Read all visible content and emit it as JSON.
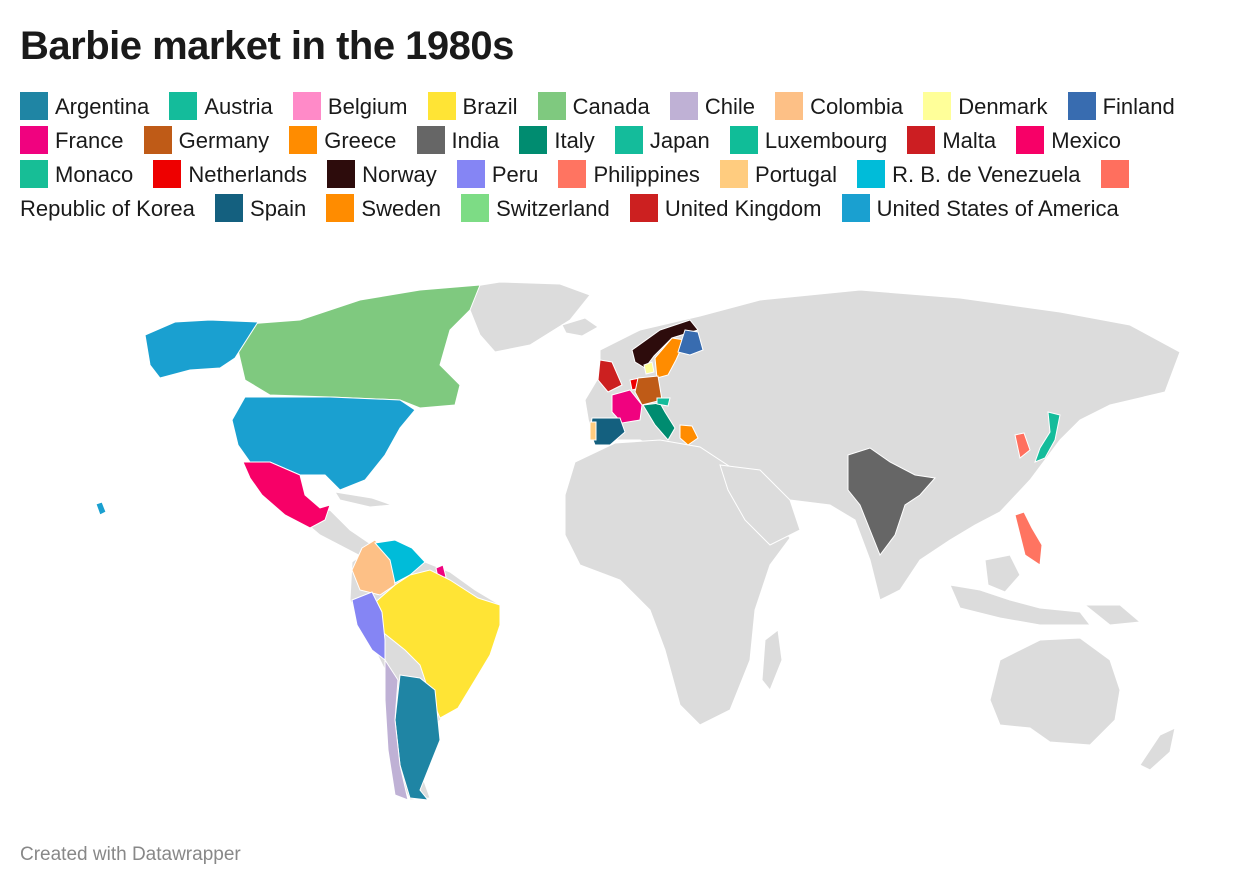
{
  "title": "Barbie market in the 1980s",
  "footer": "Created with Datawrapper",
  "colors": {
    "land": "#dcdcdc",
    "border": "#ffffff"
  },
  "legend": [
    {
      "name": "Argentina",
      "color": "#1f85a4"
    },
    {
      "name": "Austria",
      "color": "#14bc9b"
    },
    {
      "name": "Belgium",
      "color": "#ff8ac8"
    },
    {
      "name": "Brazil",
      "color": "#ffe435"
    },
    {
      "name": "Canada",
      "color": "#7fc97f"
    },
    {
      "name": "Chile",
      "color": "#bfb1d5"
    },
    {
      "name": "Colombia",
      "color": "#fdc086"
    },
    {
      "name": "Denmark",
      "color": "#ffff99"
    },
    {
      "name": "Finland",
      "color": "#386cb0"
    },
    {
      "name": "France",
      "color": "#f0027f"
    },
    {
      "name": "Germany",
      "color": "#bf5b17"
    },
    {
      "name": "Greece",
      "color": "#ff8c00"
    },
    {
      "name": "India",
      "color": "#666666"
    },
    {
      "name": "Italy",
      "color": "#008c70"
    },
    {
      "name": "Japan",
      "color": "#14bc9b"
    },
    {
      "name": "Luxembourg",
      "color": "#10bd98"
    },
    {
      "name": "Malta",
      "color": "#cc1e22"
    },
    {
      "name": "Mexico",
      "color": "#f70067"
    },
    {
      "name": "Monaco",
      "color": "#17be96"
    },
    {
      "name": "Netherlands",
      "color": "#ee0000"
    },
    {
      "name": "Norway",
      "color": "#2d0c0c"
    },
    {
      "name": "Peru",
      "color": "#8585f4"
    },
    {
      "name": "Philippines",
      "color": "#ff7461"
    },
    {
      "name": "Portugal",
      "color": "#ffcc7f"
    },
    {
      "name": "R. B. de Venezuela",
      "color": "#00bcd9"
    },
    {
      "name": "Republic of Korea",
      "color": "#ff6f5e"
    },
    {
      "name": "Spain",
      "color": "#14607f"
    },
    {
      "name": "Sweden",
      "color": "#ff8c00"
    },
    {
      "name": "Switzerland",
      "color": "#7ddc85"
    },
    {
      "name": "United Kingdom",
      "color": "#cc2020"
    },
    {
      "name": "United States of America",
      "color": "#1aa0d0"
    }
  ]
}
